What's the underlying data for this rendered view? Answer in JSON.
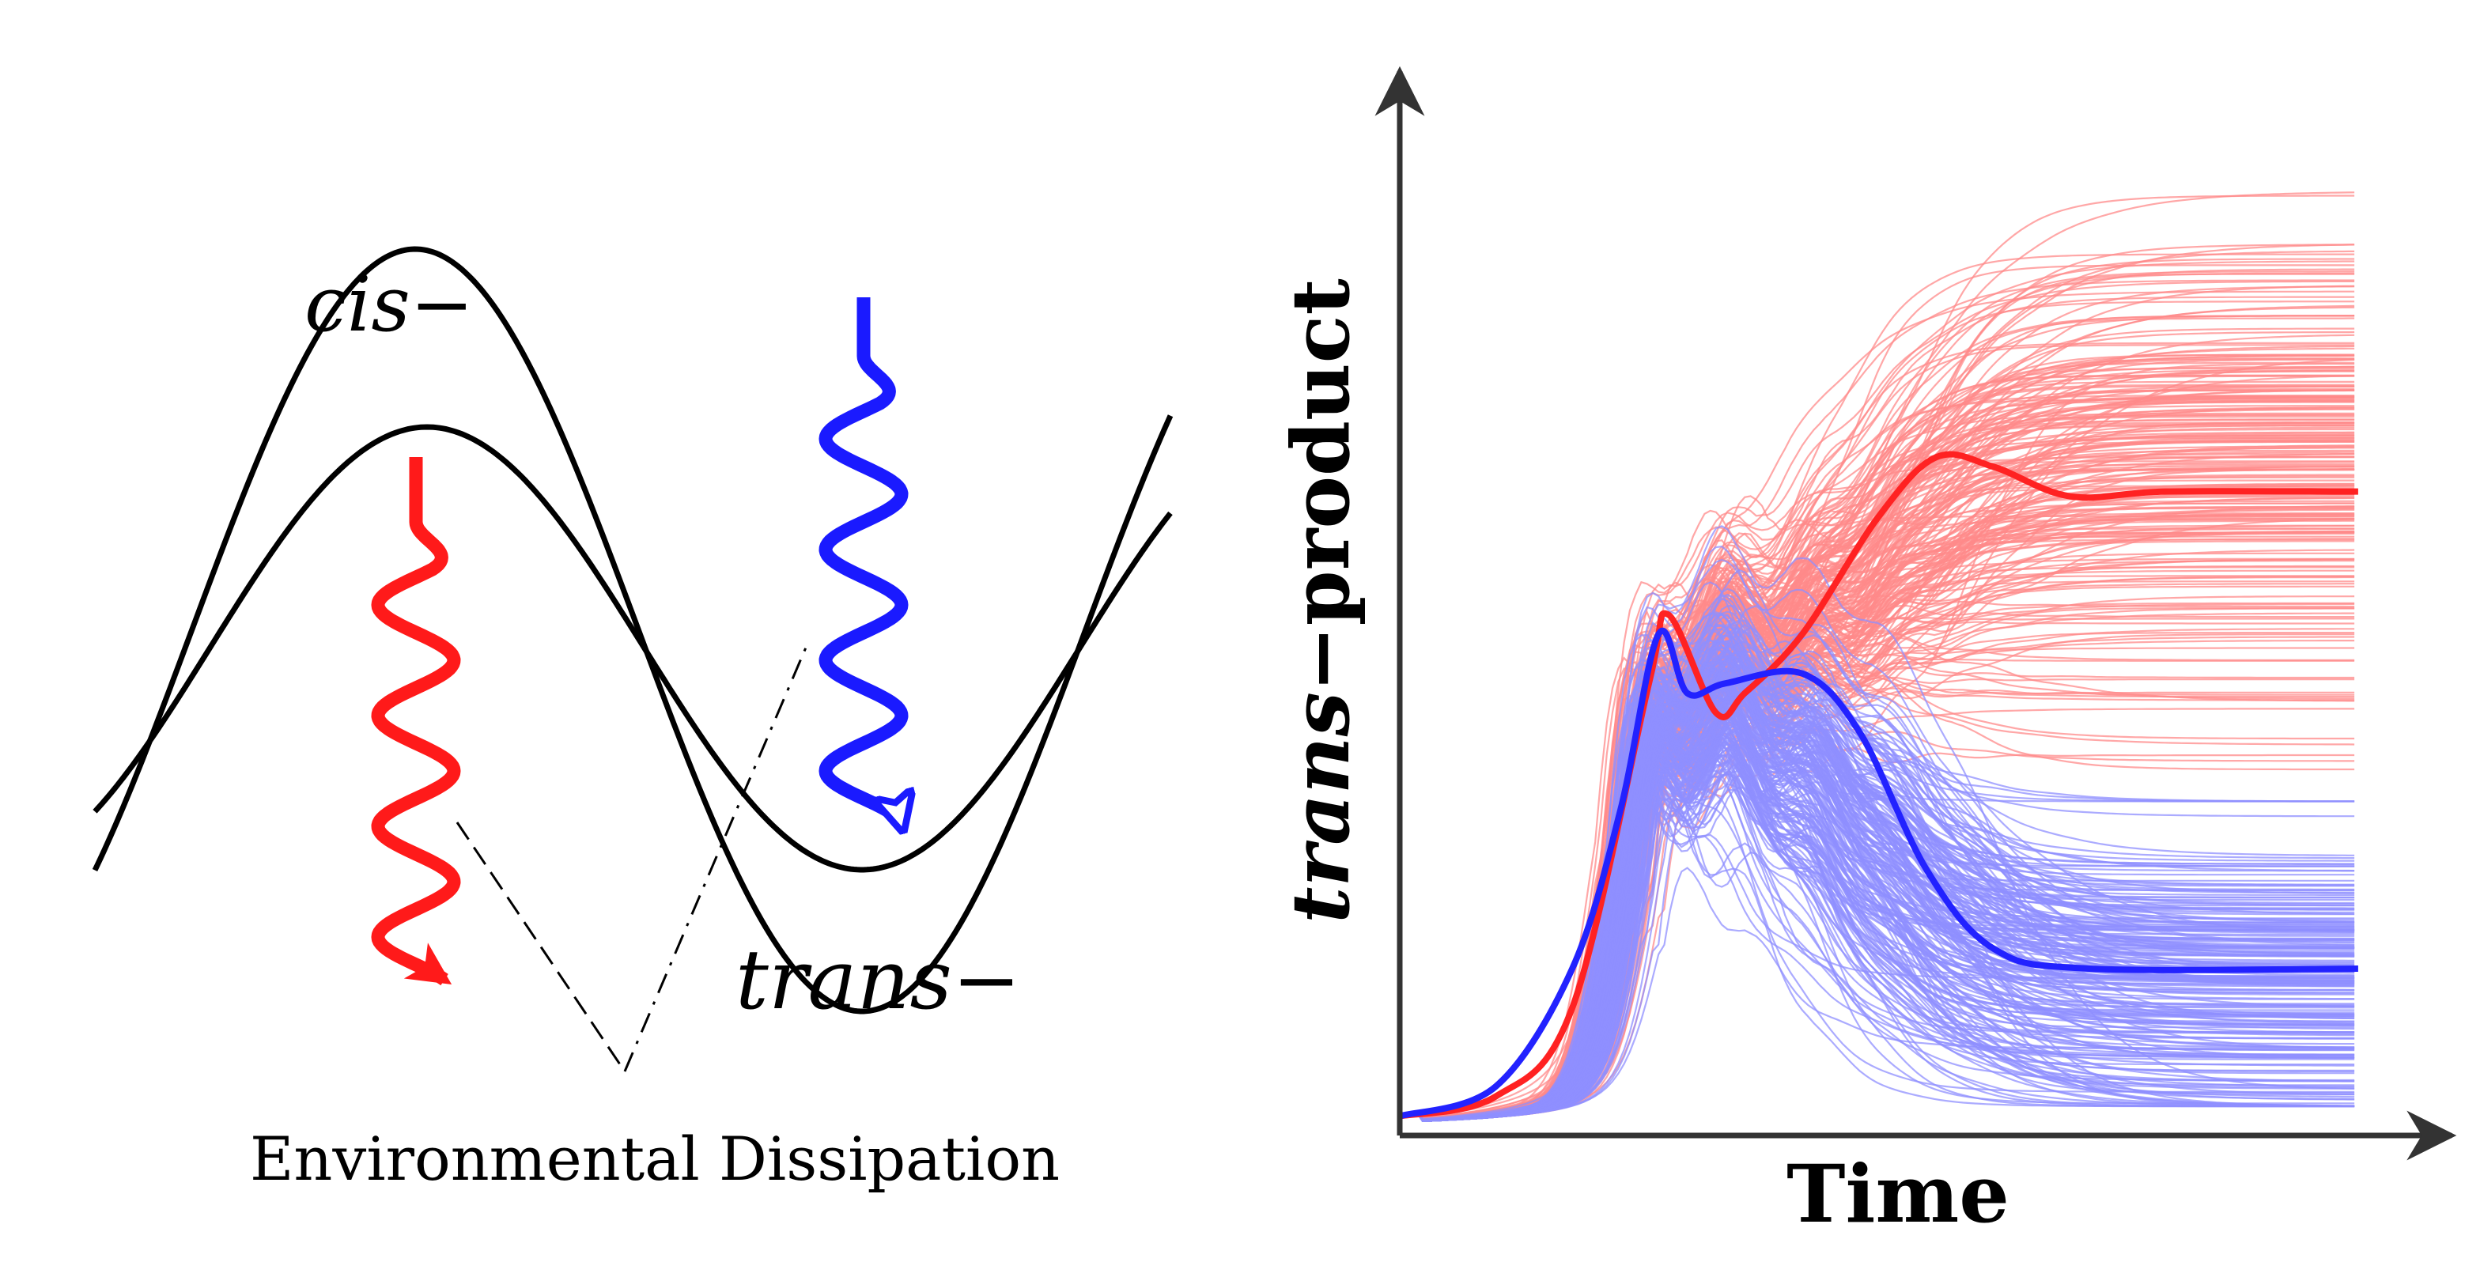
{
  "left_panel": {
    "cis_label": "cis−",
    "trans_label": "trans−",
    "caption": "Environmental Dissipation",
    "colors": {
      "curve": "#000000",
      "cis_arrow": "#ff1a1a",
      "trans_arrow": "#1a1aff"
    }
  },
  "right_panel": {
    "ylabel_italic": "trans",
    "ylabel_rest": "−product",
    "xlabel": "Time"
  },
  "chart_data": {
    "type": "line",
    "xlabel": "Time",
    "ylabel": "trans−product",
    "grid": false,
    "ticks": "none",
    "x": [
      0,
      1
    ],
    "ylim": [
      0,
      1
    ],
    "series": [
      {
        "color": "#ff2222",
        "points": [
          [
            0.0,
            0.01
          ],
          [
            0.1,
            0.03
          ],
          [
            0.18,
            0.12
          ],
          [
            0.26,
            0.45
          ],
          [
            0.28,
            0.52
          ],
          [
            0.33,
            0.42
          ],
          [
            0.36,
            0.44
          ],
          [
            0.42,
            0.5
          ],
          [
            0.5,
            0.62
          ],
          [
            0.56,
            0.68
          ],
          [
            0.62,
            0.67
          ],
          [
            0.7,
            0.64
          ],
          [
            0.8,
            0.645
          ],
          [
            1.0,
            0.645
          ]
        ]
      },
      {
        "color": "#2222ff",
        "points": [
          [
            0.0,
            0.01
          ],
          [
            0.1,
            0.04
          ],
          [
            0.18,
            0.16
          ],
          [
            0.23,
            0.32
          ],
          [
            0.27,
            0.5
          ],
          [
            0.3,
            0.44
          ],
          [
            0.34,
            0.45
          ],
          [
            0.42,
            0.46
          ],
          [
            0.48,
            0.4
          ],
          [
            0.55,
            0.26
          ],
          [
            0.62,
            0.18
          ],
          [
            0.72,
            0.16
          ],
          [
            1.0,
            0.16
          ]
        ]
      }
    ],
    "ensemble_colors": {
      "trans": "#ff8a8a",
      "cis": "#8f8fff"
    }
  }
}
